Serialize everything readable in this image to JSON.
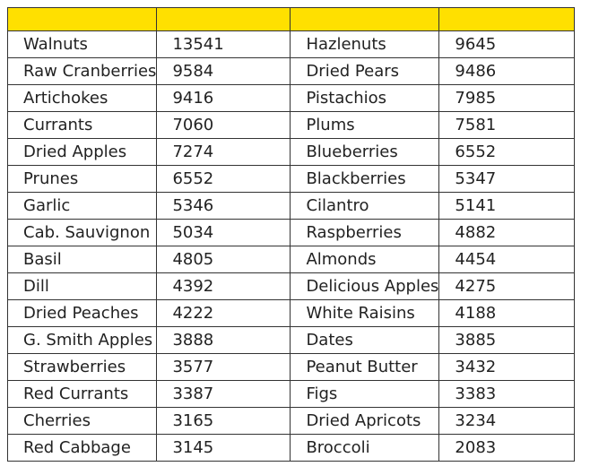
{
  "chart_data": {
    "type": "table",
    "header_color": "#FFE000",
    "columns": [
      "",
      "",
      "",
      ""
    ],
    "rows": [
      [
        "Walnuts",
        "13541",
        "Hazlenuts",
        "9645"
      ],
      [
        "Raw Cranberries",
        "9584",
        "Dried Pears",
        "9486"
      ],
      [
        "Artichokes",
        "9416",
        "Pistachios",
        "7985"
      ],
      [
        "Currants",
        "7060",
        "Plums",
        "7581"
      ],
      [
        "Dried Apples",
        "7274",
        "Blueberries",
        "6552"
      ],
      [
        "Prunes",
        "6552",
        "Blackberries",
        "5347"
      ],
      [
        "Garlic",
        "5346",
        "Cilantro",
        "5141"
      ],
      [
        "Cab. Sauvignon",
        "5034",
        "Raspberries",
        "4882"
      ],
      [
        "Basil",
        "4805",
        "Almonds",
        "4454"
      ],
      [
        "Dill",
        "4392",
        "Delicious Apples",
        "4275"
      ],
      [
        "Dried Peaches",
        "4222",
        "White Raisins",
        "4188"
      ],
      [
        "G. Smith Apples",
        "3888",
        "Dates",
        "3885"
      ],
      [
        "Strawberries",
        "3577",
        "Peanut Butter",
        "3432"
      ],
      [
        "Red Currants",
        "3387",
        "Figs",
        "3383"
      ],
      [
        "Cherries",
        "3165",
        "Dried Apricots",
        "3234"
      ],
      [
        "Red Cabbage",
        "3145",
        "Broccoli",
        "2083"
      ]
    ]
  }
}
